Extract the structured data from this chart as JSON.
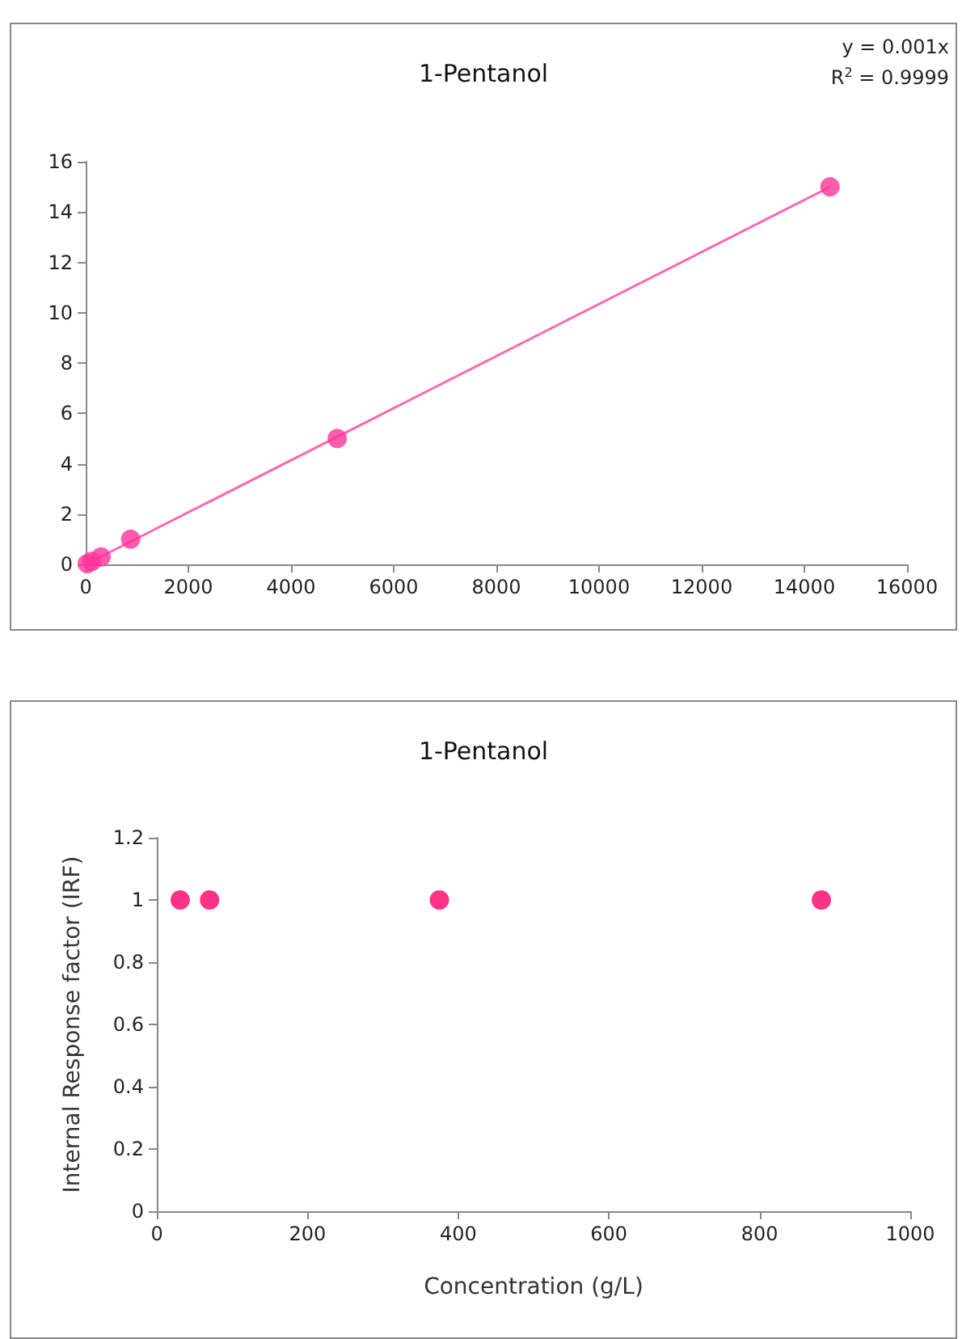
{
  "chart_data": [
    {
      "type": "scatter",
      "title": "1-Pentanol",
      "annotations": [
        "y = 0.001x",
        "R$^{2}$ = 0.9999"
      ],
      "xlim": [
        0,
        16000
      ],
      "xticks": [
        0,
        2000,
        4000,
        6000,
        8000,
        10000,
        12000,
        14000,
        16000
      ],
      "ylim": [
        0,
        16
      ],
      "yticks": [
        0,
        2,
        4,
        6,
        8,
        10,
        12,
        14,
        16
      ],
      "marker": "circle",
      "series": [
        {
          "color": "#ff3399",
          "x": [
            30,
            120,
            300,
            875,
            4900,
            14500
          ],
          "values": [
            0.03,
            0.12,
            0.3,
            1,
            5,
            15
          ]
        },
        {
          "type": "line",
          "color": "#ff66b3",
          "x": [
            0,
            14500
          ],
          "values": [
            0,
            15
          ],
          "marker": "none"
        }
      ]
    },
    {
      "type": "scatter",
      "title": "1-Pentanol",
      "xlabel": "Concentration (g/L)",
      "ylabel": "Internal Response factor (IRF)",
      "xlim": [
        0,
        1000
      ],
      "xticks": [
        0,
        200,
        400,
        600,
        800,
        1000
      ],
      "ylim": [
        0,
        1.2
      ],
      "yticks": [
        0,
        0.2,
        0.4,
        0.6,
        0.8,
        1,
        1.2
      ],
      "marker": "circle",
      "series": [
        {
          "color": "#ff0066",
          "x": [
            31,
            70,
            375,
            882
          ],
          "values": [
            1,
            1,
            1,
            1
          ]
        }
      ]
    }
  ]
}
